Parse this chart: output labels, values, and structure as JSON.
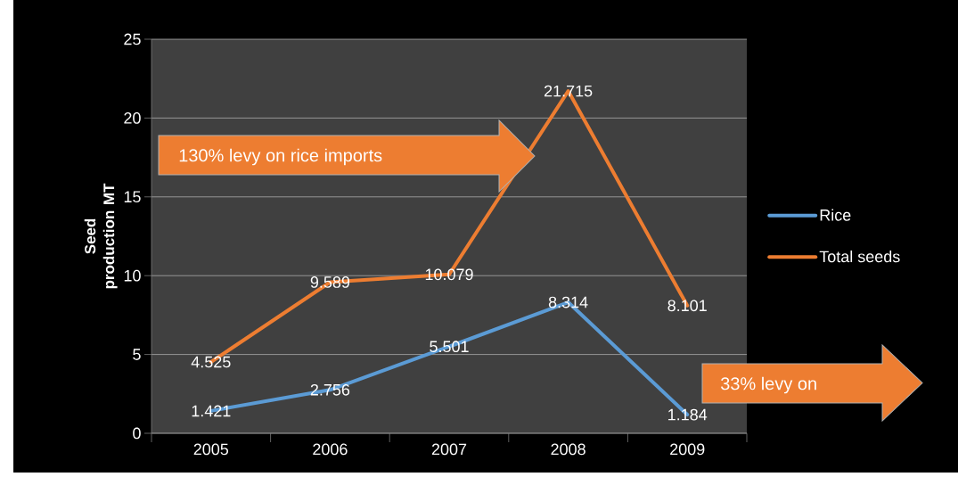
{
  "chart_data": {
    "type": "line",
    "ylabel": "Seed production MT",
    "categories": [
      "2005",
      "2006",
      "2007",
      "2008",
      "2009"
    ],
    "series": [
      {
        "name": "Rice",
        "color": "#5b9bd5",
        "values": [
          1.421,
          2.756,
          5.501,
          8.314,
          1.184
        ]
      },
      {
        "name": "Total seeds",
        "color": "#ed7d31",
        "values": [
          4.525,
          9.589,
          10.079,
          21.715,
          8.101
        ]
      }
    ],
    "ylim": [
      0,
      25
    ],
    "yticks": [
      0,
      5,
      10,
      15,
      20,
      25
    ],
    "grid": "y",
    "legend": "right",
    "data_labels": true,
    "annotations": [
      "130% levy on rice imports",
      "33% levy on"
    ]
  }
}
